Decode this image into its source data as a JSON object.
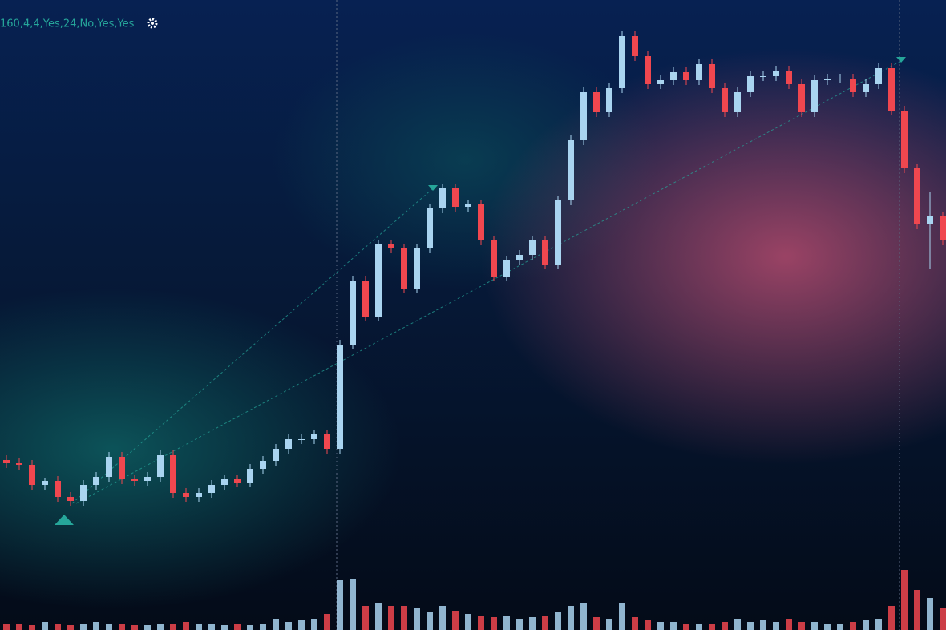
{
  "chart_data": {
    "type": "candlestick",
    "title": "160,4,4,Yes,24,No,Yes,Yes",
    "ylim": [
      0,
      786
    ],
    "vlim": [
      0,
      100
    ],
    "up_color": "#a9d4f0",
    "down_color": "#f0474f",
    "open": [
      212,
      208,
      206,
      181,
      186,
      166,
      161,
      181,
      191,
      216,
      188,
      186,
      191,
      218,
      171,
      166,
      171,
      181,
      188,
      184,
      201,
      211,
      226,
      238,
      238,
      244,
      226,
      356,
      436,
      391,
      481,
      476,
      426,
      476,
      526,
      551,
      528,
      531,
      486,
      441,
      461,
      468,
      486,
      456,
      536,
      611,
      671,
      646,
      676,
      741,
      716,
      681,
      686,
      696,
      686,
      706,
      676,
      646,
      671,
      691,
      691,
      698,
      681,
      646,
      686,
      688,
      688,
      671,
      681,
      701,
      648,
      576,
      506,
      516
    ],
    "high": [
      218,
      214,
      212,
      190,
      192,
      172,
      187,
      197,
      222,
      222,
      194,
      197,
      224,
      224,
      177,
      177,
      187,
      194,
      194,
      207,
      217,
      232,
      244,
      244,
      250,
      250,
      362,
      442,
      442,
      487,
      487,
      482,
      482,
      532,
      557,
      557,
      537,
      537,
      492,
      467,
      474,
      492,
      492,
      542,
      617,
      677,
      677,
      682,
      747,
      747,
      722,
      692,
      702,
      702,
      712,
      712,
      682,
      677,
      697,
      697,
      704,
      704,
      687,
      692,
      694,
      694,
      694,
      687,
      707,
      707,
      654,
      582,
      546,
      522
    ],
    "low": [
      202,
      200,
      175,
      175,
      160,
      155,
      155,
      175,
      185,
      182,
      180,
      180,
      185,
      165,
      160,
      160,
      165,
      175,
      178,
      178,
      195,
      205,
      220,
      232,
      232,
      220,
      220,
      350,
      385,
      385,
      470,
      420,
      420,
      470,
      520,
      522,
      522,
      480,
      435,
      435,
      455,
      462,
      450,
      450,
      530,
      605,
      640,
      640,
      670,
      710,
      675,
      675,
      680,
      680,
      680,
      670,
      640,
      640,
      665,
      685,
      685,
      675,
      640,
      640,
      680,
      682,
      665,
      665,
      675,
      642,
      570,
      500,
      450,
      480
    ],
    "close": [
      208,
      206,
      181,
      186,
      166,
      161,
      181,
      191,
      216,
      188,
      186,
      191,
      218,
      171,
      166,
      171,
      181,
      188,
      184,
      201,
      211,
      226,
      238,
      238,
      244,
      226,
      356,
      436,
      391,
      481,
      476,
      426,
      476,
      526,
      551,
      528,
      531,
      486,
      441,
      461,
      468,
      486,
      456,
      536,
      611,
      671,
      646,
      676,
      741,
      716,
      681,
      686,
      696,
      686,
      706,
      676,
      646,
      671,
      691,
      691,
      698,
      681,
      646,
      686,
      688,
      688,
      671,
      681,
      701,
      648,
      576,
      506,
      516,
      486
    ],
    "volume": [
      8,
      8,
      6,
      10,
      8,
      6,
      8,
      10,
      8,
      8,
      6,
      6,
      8,
      8,
      10,
      8,
      8,
      6,
      8,
      6,
      8,
      14,
      10,
      12,
      14,
      20,
      62,
      64,
      30,
      34,
      30,
      30,
      28,
      22,
      30,
      24,
      20,
      18,
      16,
      18,
      14,
      16,
      18,
      22,
      30,
      34,
      16,
      14,
      34,
      16,
      12,
      10,
      10,
      8,
      8,
      8,
      10,
      14,
      10,
      12,
      10,
      14,
      10,
      10,
      8,
      8,
      10,
      12,
      14,
      30,
      75,
      50,
      40,
      28
    ]
  }
}
